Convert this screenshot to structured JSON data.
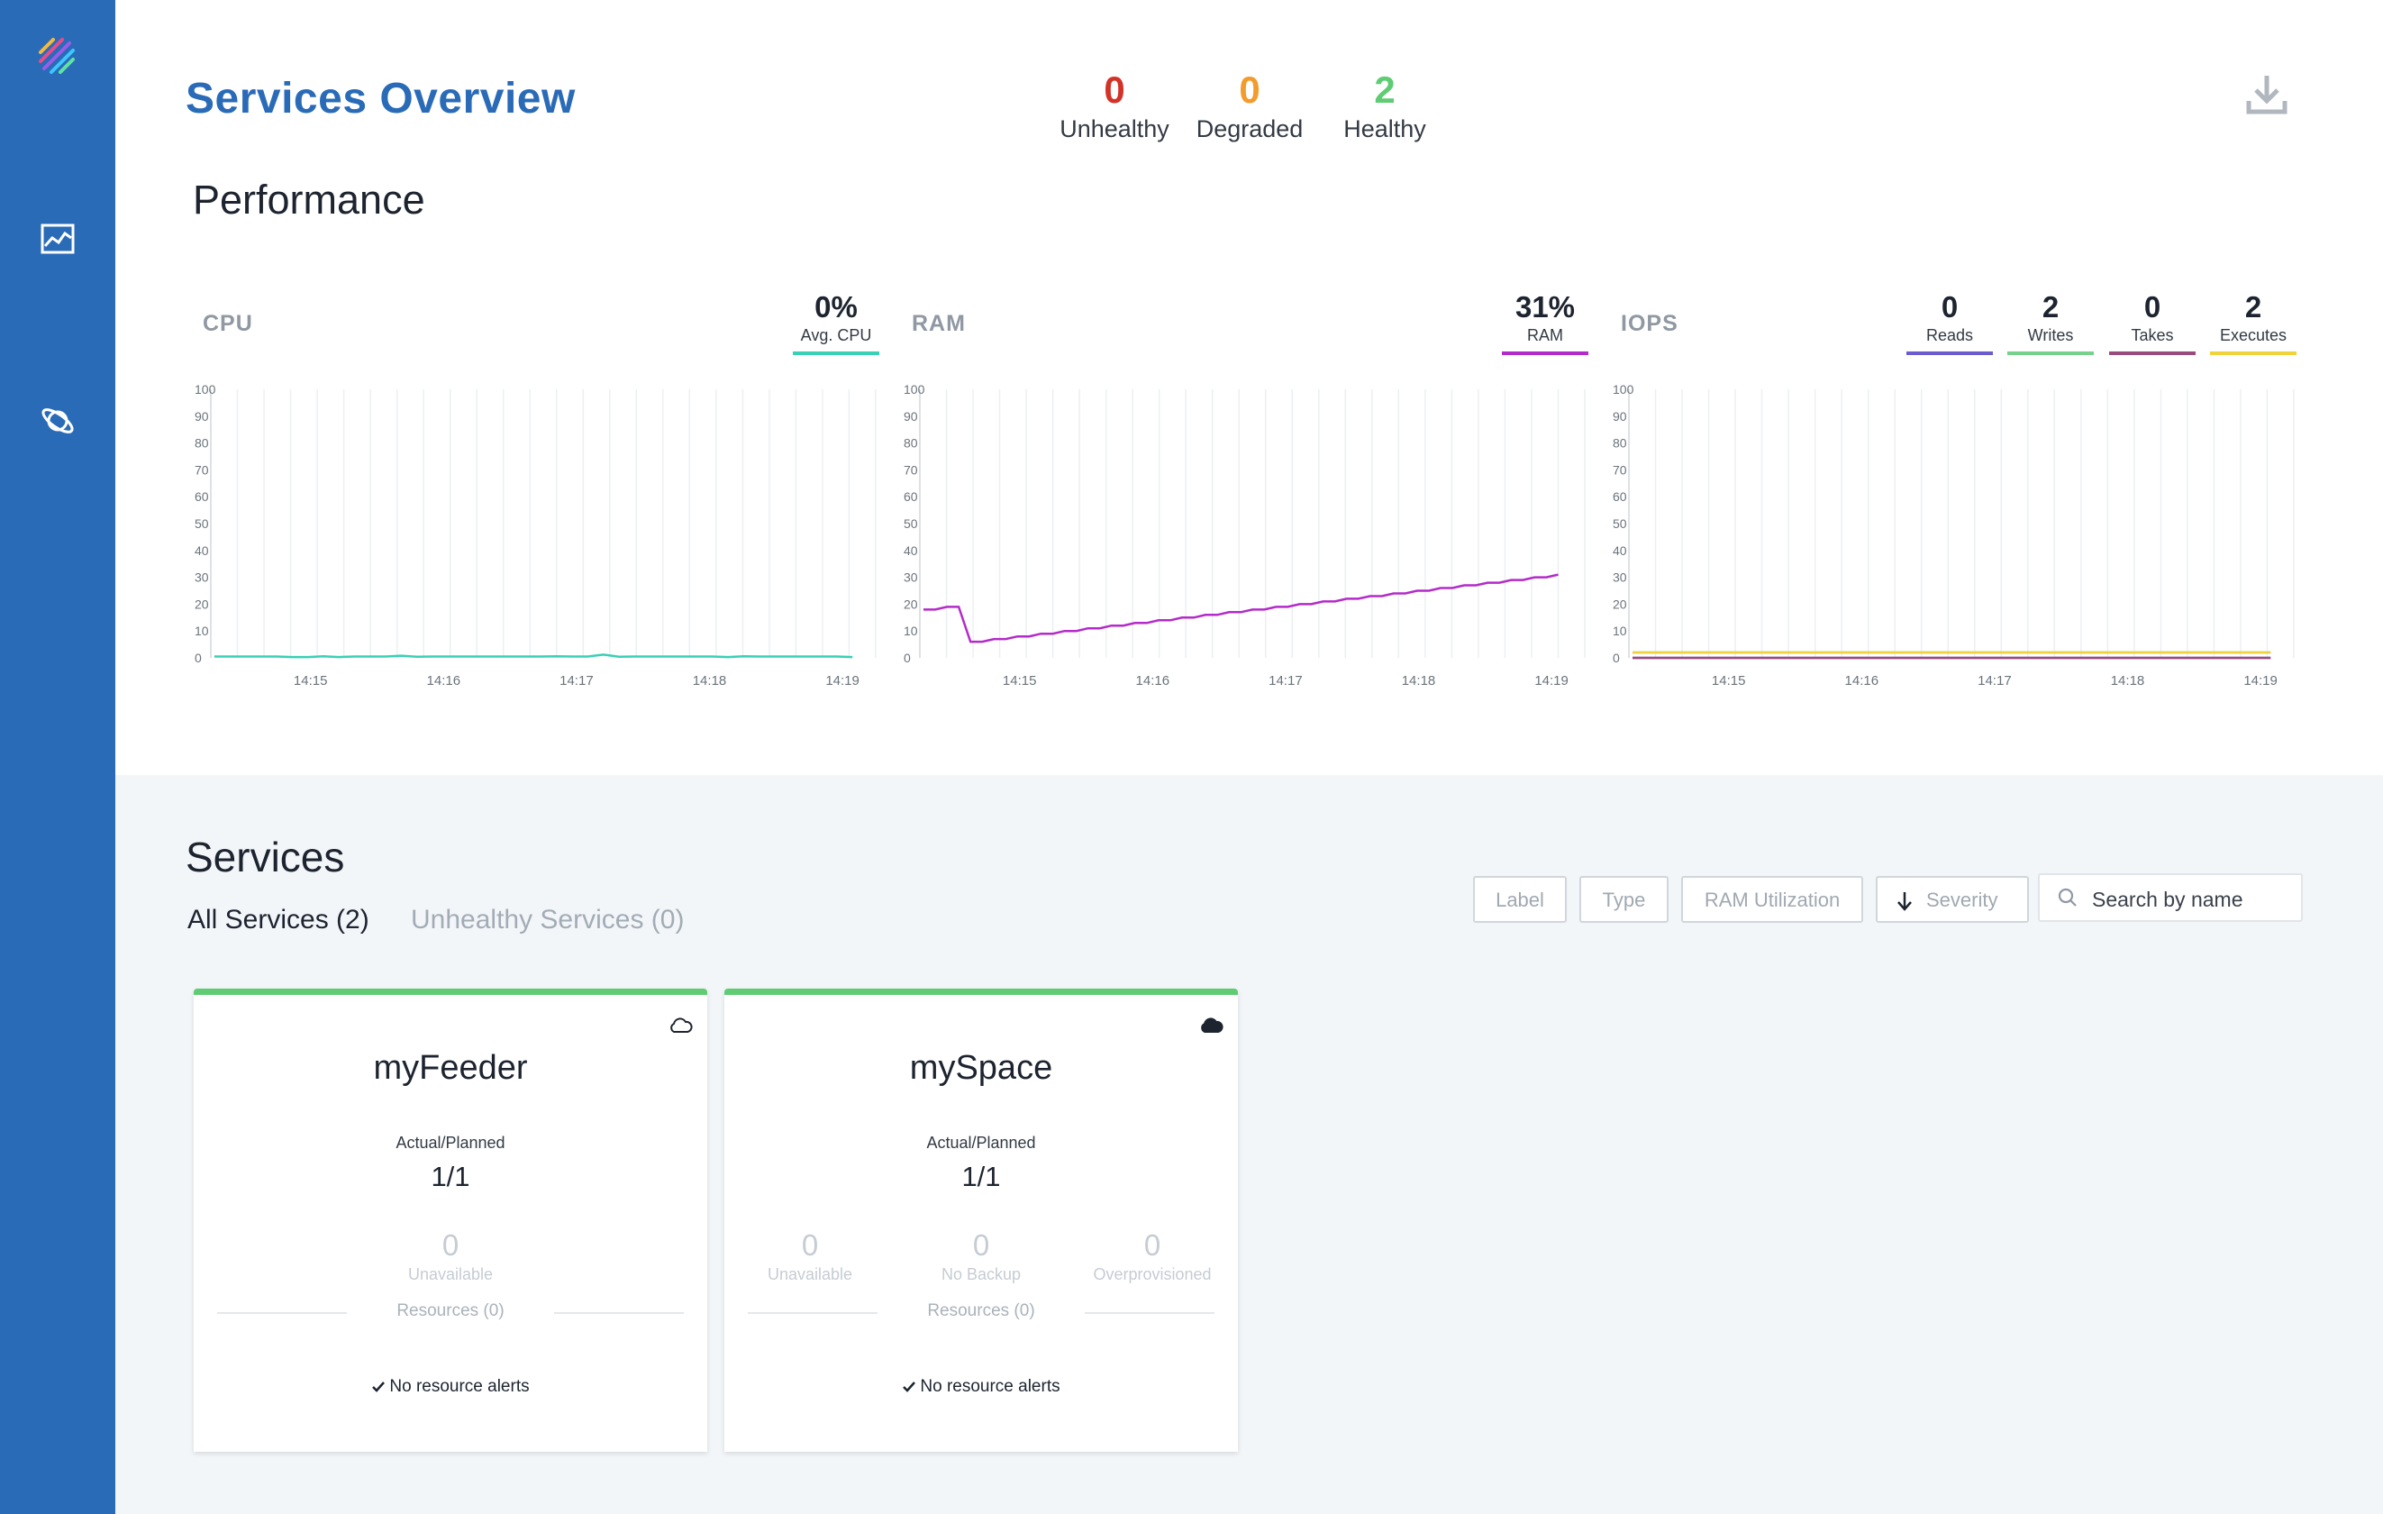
{
  "page": {
    "title": "Services Overview"
  },
  "health": {
    "unhealthy": {
      "value": "0",
      "label": "Unhealthy",
      "color": "#d33226"
    },
    "degraded": {
      "value": "0",
      "label": "Degraded",
      "color": "#f39b2c"
    },
    "healthy": {
      "value": "2",
      "label": "Healthy",
      "color": "#5fcc73"
    }
  },
  "performance": {
    "title": "Performance",
    "cpu": {
      "title": "CPU",
      "metrics": [
        {
          "value": "0%",
          "label": "Avg. CPU",
          "color": "#3ad0b5"
        }
      ]
    },
    "ram": {
      "title": "RAM",
      "metrics": [
        {
          "value": "31%",
          "label": "RAM",
          "color": "#b32bc8"
        }
      ]
    },
    "iops": {
      "title": "IOPS",
      "metrics": [
        {
          "value": "0",
          "label": "Reads",
          "color": "#6a5ccf"
        },
        {
          "value": "2",
          "label": "Writes",
          "color": "#76d18c"
        },
        {
          "value": "0",
          "label": "Takes",
          "color": "#9b4a7c"
        },
        {
          "value": "2",
          "label": "Executes",
          "color": "#f0d23a"
        }
      ]
    }
  },
  "chart_data": [
    {
      "type": "line",
      "title": "CPU",
      "ylim": [
        0,
        100
      ],
      "yticks": [
        "0",
        "10",
        "20",
        "30",
        "40",
        "50",
        "60",
        "70",
        "80",
        "90",
        "100"
      ],
      "xticks": [
        "14:15",
        "14:16",
        "14:17",
        "14:18",
        "14:19"
      ],
      "series": [
        {
          "name": "Avg. CPU",
          "color": "#3ad0b5",
          "values": [
            0.5,
            0.5,
            0.5,
            0.5,
            0.5,
            0.3,
            0.3,
            0.6,
            0.3,
            0.5,
            0.5,
            0.5,
            0.8,
            0.4,
            0.5,
            0.5,
            0.5,
            0.5,
            0.5,
            0.5,
            0.5,
            0.5,
            0.6,
            0.5,
            0.5,
            1.2,
            0.4,
            0.5,
            0.5,
            0.5,
            0.5,
            0.5,
            0.5,
            0.3,
            0.6,
            0.5,
            0.5,
            0.5,
            0.5,
            0.5,
            0.5,
            0.3
          ]
        }
      ]
    },
    {
      "type": "line",
      "title": "RAM",
      "ylim": [
        0,
        100
      ],
      "yticks": [
        "0",
        "10",
        "20",
        "30",
        "40",
        "50",
        "60",
        "70",
        "80",
        "90",
        "100"
      ],
      "xticks": [
        "14:15",
        "14:16",
        "14:17",
        "14:18",
        "14:19"
      ],
      "series": [
        {
          "name": "RAM",
          "color": "#b32bc8",
          "values": [
            18,
            18,
            19,
            19,
            6,
            6,
            7,
            7,
            8,
            8,
            9,
            9,
            10,
            10,
            11,
            11,
            12,
            12,
            13,
            13,
            14,
            14,
            15,
            15,
            16,
            16,
            17,
            17,
            18,
            18,
            19,
            19,
            20,
            20,
            21,
            21,
            22,
            22,
            23,
            23,
            24,
            24,
            25,
            25,
            26,
            26,
            27,
            27,
            28,
            28,
            29,
            29,
            30,
            30,
            31
          ]
        }
      ]
    },
    {
      "type": "line",
      "title": "IOPS",
      "ylim": [
        0,
        100
      ],
      "yticks": [
        "0",
        "10",
        "20",
        "30",
        "40",
        "50",
        "60",
        "70",
        "80",
        "90",
        "100"
      ],
      "xticks": [
        "14:15",
        "14:16",
        "14:17",
        "14:18",
        "14:19"
      ],
      "series": [
        {
          "name": "Reads",
          "color": "#6a5ccf",
          "values": [
            0,
            0,
            0,
            0,
            0,
            0,
            0,
            0,
            0,
            0
          ]
        },
        {
          "name": "Writes",
          "color": "#76d18c",
          "values": [
            2,
            2,
            2,
            2,
            2,
            2,
            2,
            2,
            2,
            2
          ]
        },
        {
          "name": "Takes",
          "color": "#9b4a7c",
          "values": [
            0,
            0,
            0,
            0,
            0,
            0,
            0,
            0,
            0,
            0
          ]
        },
        {
          "name": "Executes",
          "color": "#f0d23a",
          "values": [
            2,
            2,
            2,
            2,
            2,
            2,
            2,
            2,
            2,
            2
          ]
        }
      ]
    }
  ],
  "services": {
    "title": "Services",
    "tabs": [
      {
        "label": "All Services (2)"
      },
      {
        "label": "Unhealthy Services (0)"
      }
    ],
    "filters": {
      "label": "Label",
      "type": "Type",
      "ram": "RAM Utilization",
      "severity": "Severity"
    },
    "search": {
      "placeholder": "Search by name"
    },
    "cards": [
      {
        "name": "myFeeder",
        "cloud": "cloud-outline-icon",
        "ap_label": "Actual/Planned",
        "ap_value": "1/1",
        "stats": [
          {
            "value": "0",
            "label": "Unavailable"
          }
        ],
        "resources": "Resources (0)",
        "alert": "No resource alerts"
      },
      {
        "name": "mySpace",
        "cloud": "cloud-filled-icon",
        "ap_label": "Actual/Planned",
        "ap_value": "1/1",
        "stats": [
          {
            "value": "0",
            "label": "Unavailable"
          },
          {
            "value": "0",
            "label": "No Backup"
          },
          {
            "value": "0",
            "label": "Overprovisioned"
          }
        ],
        "resources": "Resources (0)",
        "alert": "No resource alerts"
      }
    ]
  }
}
